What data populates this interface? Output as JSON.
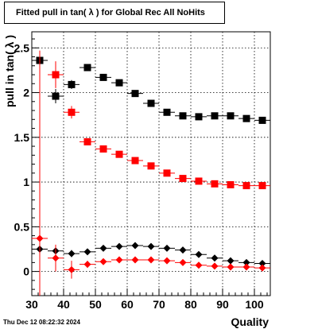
{
  "title": "Fitted pull in tan( λ ) for Global Rec All NoHits",
  "timestamp": "Thu Dec 12 08:22:32 2024",
  "chart_data": {
    "type": "scatter",
    "xlabel": "Quality",
    "ylabel": "pull in tan( λ )",
    "xlim": [
      30,
      105
    ],
    "ylim": [
      -0.27,
      2.68
    ],
    "grid": true,
    "xticks": [
      30,
      40,
      50,
      60,
      70,
      80,
      90,
      100
    ],
    "yticks": [
      0,
      0.5,
      1,
      1.5,
      2,
      2.5
    ],
    "xtick_labels": [
      "30",
      "40",
      "50",
      "60",
      "70",
      "80",
      "90",
      "100"
    ],
    "ytick_labels": [
      "0",
      "0.5",
      "1",
      "1.5",
      "2",
      "2.5"
    ],
    "series": [
      {
        "marker": "square",
        "color": "#000000",
        "x": [
          32.5,
          37.5,
          42.5,
          47.5,
          52.5,
          57.5,
          62.5,
          67.5,
          72.5,
          77.5,
          82.5,
          87.5,
          92.5,
          97.5,
          102.5
        ],
        "y": [
          2.36,
          1.96,
          2.09,
          2.28,
          2.17,
          2.11,
          1.99,
          1.88,
          1.78,
          1.74,
          1.73,
          1.74,
          1.74,
          1.71,
          1.69
        ],
        "yerr": [
          0.08,
          0.08,
          0.05,
          0.03,
          0.03,
          0.02,
          0.02,
          0.02,
          0.02,
          0.02,
          0.02,
          0.02,
          0.02,
          0.02,
          0.02
        ]
      },
      {
        "marker": "square",
        "color": "#ff0000",
        "x": [
          37.5,
          42.5,
          47.5,
          52.5,
          57.5,
          62.5,
          67.5,
          72.5,
          77.5,
          82.5,
          87.5,
          92.5,
          97.5,
          102.5
        ],
        "y": [
          2.2,
          1.78,
          1.45,
          1.37,
          1.31,
          1.24,
          1.18,
          1.1,
          1.04,
          1.01,
          0.98,
          0.97,
          0.96,
          0.96
        ],
        "yerr": [
          0.15,
          0.07,
          0.03,
          0.02,
          0.02,
          0.02,
          0.02,
          0.01,
          0.01,
          0.01,
          0.01,
          0.01,
          0.01,
          0.01
        ]
      },
      {
        "marker": "diamond",
        "color": "#000000",
        "x": [
          32.5,
          37.5,
          42.5,
          47.5,
          52.5,
          57.5,
          62.5,
          67.5,
          72.5,
          77.5,
          82.5,
          87.5,
          92.5,
          97.5,
          102.5
        ],
        "y": [
          0.25,
          0.23,
          0.2,
          0.22,
          0.26,
          0.28,
          0.29,
          0.28,
          0.26,
          0.24,
          0.19,
          0.15,
          0.12,
          0.1,
          0.09
        ],
        "yerr": [
          0.08,
          0.06,
          0.04,
          0.03,
          0.02,
          0.02,
          0.02,
          0.02,
          0.02,
          0.01,
          0.01,
          0.01,
          0.01,
          0.01,
          0.01
        ]
      },
      {
        "marker": "diamond",
        "color": "#ff0000",
        "x": [
          32.5,
          37.5,
          42.5,
          47.5,
          52.5,
          57.5,
          62.5,
          67.5,
          72.5,
          77.5,
          82.5,
          87.5,
          92.5,
          97.5,
          102.5
        ],
        "y": [
          0.37,
          0.15,
          0.02,
          0.08,
          0.11,
          0.13,
          0.13,
          0.13,
          0.12,
          0.1,
          0.07,
          0.06,
          0.05,
          0.05,
          0.04
        ],
        "yerr": [
          2.1,
          0.15,
          0.1,
          0.04,
          0.02,
          0.02,
          0.02,
          0.02,
          0.02,
          0.01,
          0.01,
          0.01,
          0.01,
          0.01,
          0.01
        ]
      }
    ]
  }
}
